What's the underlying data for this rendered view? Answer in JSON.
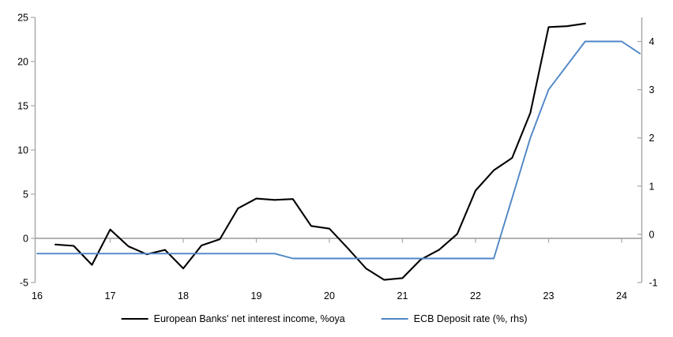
{
  "chart_data": {
    "type": "line",
    "title": "",
    "grid": "off",
    "legend_position": "bottom-center",
    "axes": {
      "x": {
        "labels": [
          16,
          17,
          18,
          19,
          20,
          21,
          22,
          23,
          24
        ],
        "tick_marks": [
          17,
          18,
          19,
          20,
          21,
          22,
          23,
          24
        ],
        "range": [
          16,
          24.27
        ]
      },
      "left": {
        "ticks": [
          25,
          20,
          15,
          10,
          5,
          0,
          -5
        ],
        "range": [
          -5,
          25
        ]
      },
      "right": {
        "ticks": [
          4,
          3,
          2,
          1,
          0,
          -1
        ],
        "range": [
          -1,
          4.5
        ]
      }
    },
    "zero_line": {
      "value": 0,
      "axis": "left",
      "color": "#a6a6a6"
    },
    "axis_color": "#a6a6a6",
    "series": [
      {
        "name": "European Banks' net interest income, %oya",
        "axis": "left",
        "color": "#000000",
        "x": [
          16.25,
          16.5,
          16.75,
          17,
          17.25,
          17.5,
          17.75,
          18,
          18.25,
          18.5,
          18.75,
          19,
          19.25,
          19.5,
          19.75,
          20,
          20.25,
          20.5,
          20.75,
          21,
          21.25,
          21.5,
          21.75,
          22,
          22.25,
          22.5,
          22.75,
          23,
          23.25,
          23.5
        ],
        "values": [
          -0.7,
          -0.85,
          -3.0,
          1.0,
          -0.9,
          -1.8,
          -1.3,
          -3.4,
          -0.8,
          -0.1,
          3.4,
          4.5,
          4.35,
          4.45,
          1.4,
          1.1,
          -1.1,
          -3.4,
          -4.7,
          -4.5,
          -2.4,
          -1.3,
          0.5,
          5.4,
          7.7,
          9.1,
          14.2,
          23.9,
          24.0,
          24.3
        ]
      },
      {
        "name": "ECB Deposit rate (%, rhs)",
        "axis": "right",
        "color": "#4f86c6",
        "x": [
          16,
          16.25,
          16.5,
          16.75,
          17,
          17.25,
          17.5,
          17.75,
          18,
          18.25,
          18.5,
          18.75,
          19,
          19.25,
          19.5,
          19.75,
          20,
          20.25,
          20.5,
          20.75,
          21,
          21.25,
          21.5,
          21.75,
          22,
          22.25,
          22.5,
          22.75,
          23,
          23.25,
          23.5,
          23.75,
          24,
          24.25
        ],
        "values": [
          -0.4,
          -0.4,
          -0.4,
          -0.4,
          -0.4,
          -0.4,
          -0.4,
          -0.4,
          -0.4,
          -0.4,
          -0.4,
          -0.4,
          -0.4,
          -0.4,
          -0.5,
          -0.5,
          -0.5,
          -0.5,
          -0.5,
          -0.5,
          -0.5,
          -0.5,
          -0.5,
          -0.5,
          -0.5,
          -0.5,
          0.75,
          2.0,
          3.0,
          3.5,
          4.0,
          4.0,
          4.0,
          3.75
        ]
      }
    ]
  }
}
